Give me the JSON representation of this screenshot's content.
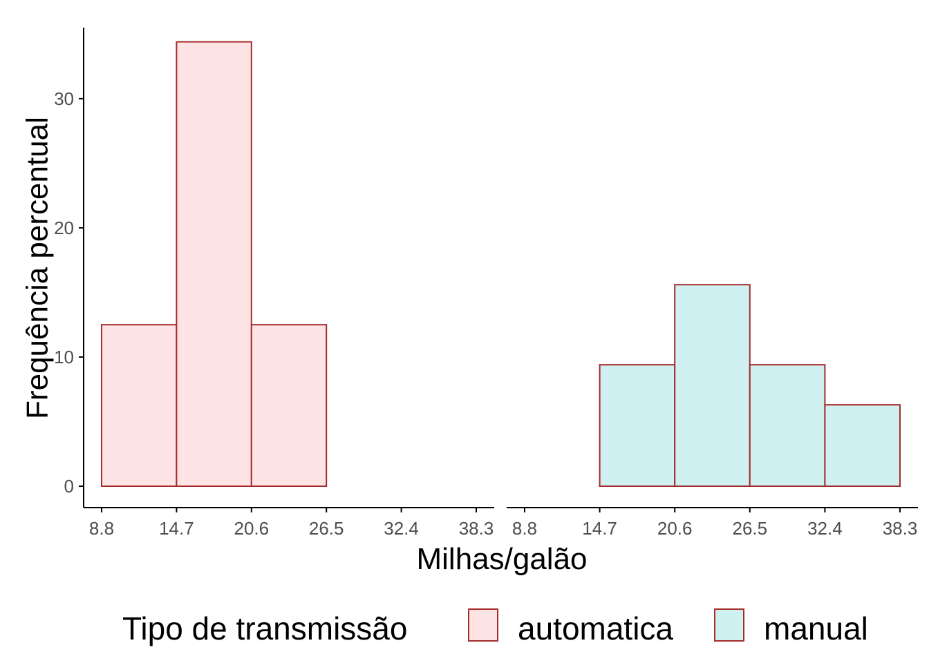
{
  "chart_data": {
    "type": "bar",
    "ylabel": "Frequência percentual",
    "xlabel": "Milhas/galão",
    "x_ticks": [
      "8.8",
      "14.7",
      "20.6",
      "26.5",
      "32.4",
      "38.3"
    ],
    "y_ticks": [
      "0",
      "10",
      "20",
      "30"
    ],
    "ylim": [
      0,
      35.5
    ],
    "xlim": [
      8.8,
      38.3
    ],
    "bin_edges": [
      8.8,
      14.7,
      20.6,
      26.5,
      32.4,
      38.3
    ],
    "panels": [
      {
        "name": "automatica",
        "values": [
          12.5,
          34.4,
          12.5,
          0,
          0
        ],
        "fill": "#ffe4e6",
        "stroke": "#a52a2a"
      },
      {
        "name": "manual",
        "values": [
          0,
          9.4,
          15.6,
          9.4,
          6.3
        ],
        "fill": "#cff1f2",
        "stroke": "#a52a2a"
      }
    ],
    "legend": {
      "title": "Tipo de transmissão",
      "items": [
        "automatica",
        "manual"
      ],
      "position": "bottom"
    },
    "grid": false
  }
}
